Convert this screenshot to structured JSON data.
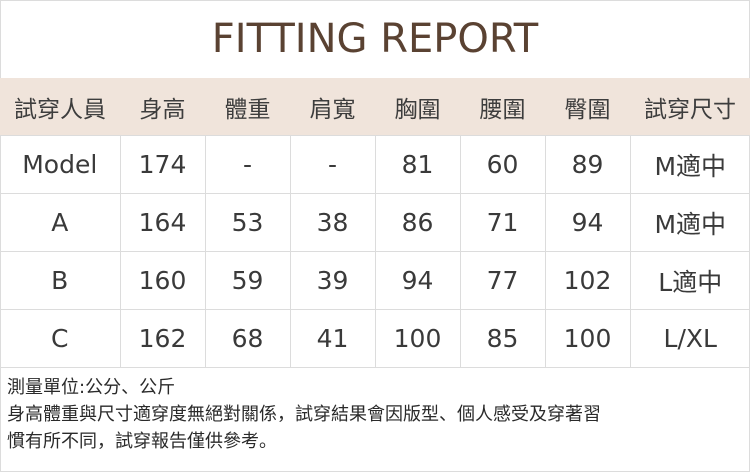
{
  "title": "FITTING REPORT",
  "colors": {
    "title": "#5a4232",
    "header_bg": "#f0e4db",
    "border": "#dcdcdc"
  },
  "table": {
    "headers": [
      "試穿人員",
      "身高",
      "體重",
      "肩寬",
      "胸圍",
      "腰圍",
      "臀圍",
      "試穿尺寸"
    ],
    "rows": [
      [
        "Model",
        "174",
        "-",
        "-",
        "81",
        "60",
        "89",
        "M適中"
      ],
      [
        "A",
        "164",
        "53",
        "38",
        "86",
        "71",
        "94",
        "M適中"
      ],
      [
        "B",
        "160",
        "59",
        "39",
        "94",
        "77",
        "102",
        "L適中"
      ],
      [
        "C",
        "162",
        "68",
        "41",
        "100",
        "85",
        "100",
        "L/XL"
      ]
    ]
  },
  "notes": {
    "unit": "測量單位:公分、公斤",
    "disclaimer_line1": "身高體重與尺寸適穿度無絕對關係，試穿結果會因版型、個人感受及穿著習",
    "disclaimer_line2": "慣有所不同，試穿報告僅供參考。"
  }
}
